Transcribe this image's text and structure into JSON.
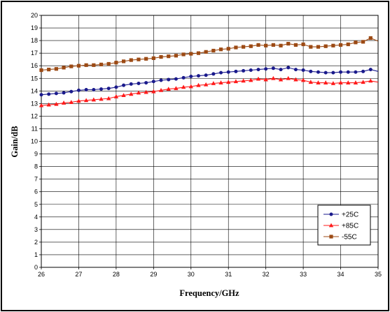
{
  "chart_data": {
    "type": "line",
    "xlabel": "Frequency/GHz",
    "ylabel": "Gain/dB",
    "xlim": [
      26,
      35
    ],
    "ylim": [
      0,
      20
    ],
    "xticks": [
      26,
      27,
      28,
      29,
      30,
      31,
      32,
      33,
      34,
      35
    ],
    "yticks": [
      0,
      1,
      2,
      3,
      4,
      5,
      6,
      7,
      8,
      9,
      10,
      11,
      12,
      13,
      14,
      15,
      16,
      17,
      18,
      19,
      20
    ],
    "grid": true,
    "legend_position": "bottom-right",
    "x": [
      26.0,
      26.2,
      26.4,
      26.6,
      26.8,
      27.0,
      27.2,
      27.4,
      27.6,
      27.8,
      28.0,
      28.2,
      28.4,
      28.6,
      28.8,
      29.0,
      29.2,
      29.4,
      29.6,
      29.8,
      30.0,
      30.2,
      30.4,
      30.6,
      30.8,
      31.0,
      31.2,
      31.4,
      31.6,
      31.8,
      32.0,
      32.2,
      32.4,
      32.6,
      32.8,
      33.0,
      33.2,
      33.4,
      33.6,
      33.8,
      34.0,
      34.2,
      34.4,
      34.6,
      34.8,
      35.0
    ],
    "series": [
      {
        "name": "+25C",
        "color": "#1a1a8c",
        "marker": "circle",
        "values": [
          13.7,
          13.75,
          13.8,
          13.85,
          13.95,
          14.05,
          14.1,
          14.1,
          14.15,
          14.2,
          14.3,
          14.45,
          14.55,
          14.6,
          14.65,
          14.75,
          14.85,
          14.9,
          14.95,
          15.05,
          15.15,
          15.2,
          15.25,
          15.35,
          15.45,
          15.5,
          15.55,
          15.6,
          15.65,
          15.7,
          15.75,
          15.8,
          15.7,
          15.85,
          15.7,
          15.65,
          15.55,
          15.5,
          15.45,
          15.45,
          15.5,
          15.5,
          15.5,
          15.55,
          15.7,
          15.55
        ]
      },
      {
        "name": "+85C",
        "color": "#ff1a1a",
        "marker": "triangle",
        "values": [
          12.85,
          12.9,
          12.95,
          13.05,
          13.1,
          13.2,
          13.25,
          13.3,
          13.35,
          13.4,
          13.55,
          13.65,
          13.75,
          13.85,
          13.9,
          13.95,
          14.05,
          14.15,
          14.2,
          14.3,
          14.35,
          14.45,
          14.5,
          14.6,
          14.65,
          14.7,
          14.75,
          14.8,
          14.85,
          14.95,
          14.9,
          15.0,
          14.9,
          15.0,
          14.9,
          14.85,
          14.7,
          14.65,
          14.65,
          14.6,
          14.65,
          14.65,
          14.65,
          14.7,
          14.8,
          14.7
        ]
      },
      {
        "name": "-55C",
        "color": "#9c4a14",
        "marker": "square",
        "values": [
          15.65,
          15.7,
          15.75,
          15.85,
          15.95,
          16.0,
          16.05,
          16.05,
          16.1,
          16.15,
          16.25,
          16.35,
          16.45,
          16.5,
          16.55,
          16.6,
          16.7,
          16.75,
          16.8,
          16.9,
          16.95,
          17.0,
          17.1,
          17.2,
          17.3,
          17.35,
          17.45,
          17.5,
          17.55,
          17.65,
          17.6,
          17.65,
          17.6,
          17.75,
          17.65,
          17.7,
          17.5,
          17.5,
          17.55,
          17.6,
          17.65,
          17.7,
          17.85,
          17.9,
          18.2,
          17.95
        ]
      }
    ]
  }
}
